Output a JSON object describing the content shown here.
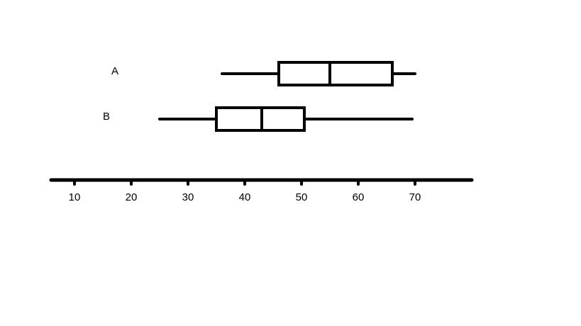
{
  "chart_data": {
    "type": "boxplot",
    "title": "",
    "xlabel": "",
    "ylabel": "",
    "orientation": "horizontal",
    "grid": false,
    "xlim": [
      6,
      80
    ],
    "x_ticks": [
      10,
      20,
      30,
      40,
      50,
      60,
      70
    ],
    "x_tick_labels": [
      "10",
      "20",
      "30",
      "40",
      "50",
      "60",
      "70"
    ],
    "categories": [
      "A",
      "B"
    ],
    "boxes": [
      {
        "label": "A",
        "min": 36,
        "q1": 46,
        "median": 55,
        "q3": 66,
        "max": 70
      },
      {
        "label": "B",
        "min": 25,
        "q1": 35,
        "median": 43,
        "q3": 50.5,
        "max": 69.5
      }
    ],
    "color": "#000000"
  }
}
